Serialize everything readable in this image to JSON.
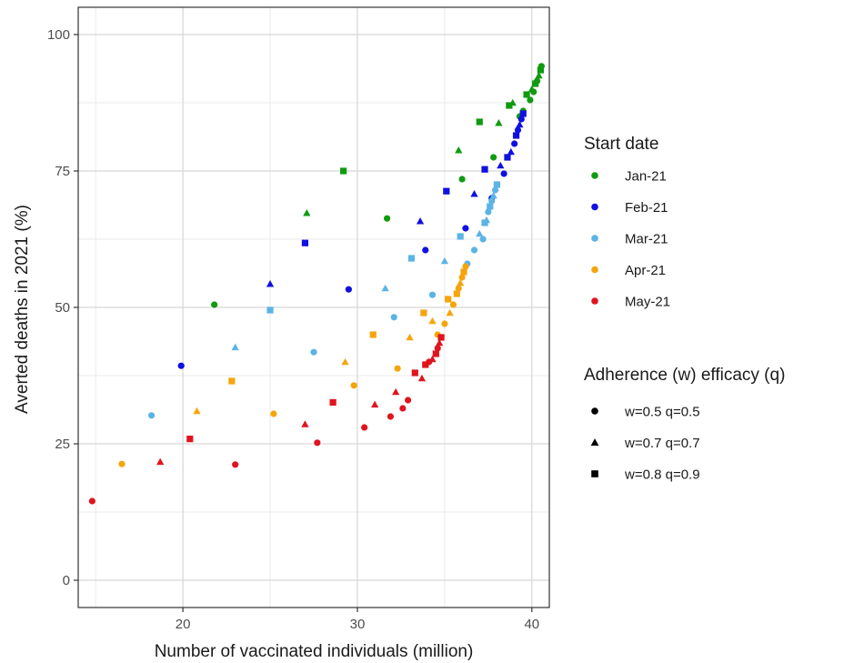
{
  "chart_data": {
    "type": "scatter",
    "xlabel": "Number of vaccinated individuals (million)",
    "ylabel": "Averted deaths in 2021 (%)",
    "xlim": [
      14,
      41
    ],
    "ylim": [
      -5,
      105
    ],
    "x_ticks": [
      20,
      30,
      40
    ],
    "y_ticks": [
      0,
      25,
      50,
      75,
      100
    ],
    "grid": true,
    "legend_placement": "right",
    "color_legend": {
      "title": "Start date",
      "entries": [
        {
          "label": "Jan-21",
          "color": "#109a10"
        },
        {
          "label": "Feb-21",
          "color": "#1010e0"
        },
        {
          "label": "Mar-21",
          "color": "#5bb4e5"
        },
        {
          "label": "Apr-21",
          "color": "#f5a50c"
        },
        {
          "label": "May-21",
          "color": "#e0141e"
        }
      ]
    },
    "shape_legend": {
      "title": "Adherence (w) efficacy (q)",
      "entries": [
        {
          "label": "w=0.5 q=0.5",
          "shape": "circle"
        },
        {
          "label": "w=0.7 q=0.7",
          "shape": "triangle"
        },
        {
          "label": "w=0.8 q=0.9",
          "shape": "square"
        }
      ]
    },
    "series": [
      {
        "name": "Jan-21",
        "points": [
          [
            21.8,
            50.5,
            "circle"
          ],
          [
            27.1,
            67.3,
            "triangle"
          ],
          [
            29.2,
            75,
            "square"
          ],
          [
            31.7,
            66.3,
            "circle"
          ],
          [
            35.8,
            78.8,
            "triangle"
          ],
          [
            36.0,
            73.5,
            "circle"
          ],
          [
            37.0,
            84,
            "square"
          ],
          [
            37.8,
            77.5,
            "circle"
          ],
          [
            38.1,
            83.8,
            "triangle"
          ],
          [
            38.7,
            87,
            "square"
          ],
          [
            38.9,
            87.5,
            "triangle"
          ],
          [
            39.3,
            85,
            "circle"
          ],
          [
            39.5,
            86,
            "circle"
          ],
          [
            39.7,
            89,
            "square"
          ],
          [
            39.9,
            88,
            "circle"
          ],
          [
            40.0,
            90,
            "triangle"
          ],
          [
            40.1,
            89.5,
            "circle"
          ],
          [
            40.2,
            91,
            "square"
          ],
          [
            40.3,
            91.5,
            "circle"
          ],
          [
            40.4,
            92.5,
            "triangle"
          ],
          [
            40.5,
            93.5,
            "square"
          ],
          [
            40.55,
            94.2,
            "circle"
          ]
        ]
      },
      {
        "name": "Feb-21",
        "points": [
          [
            19.9,
            39.3,
            "circle"
          ],
          [
            25.0,
            54.3,
            "triangle"
          ],
          [
            27.0,
            61.8,
            "square"
          ],
          [
            29.5,
            53.3,
            "circle"
          ],
          [
            33.6,
            65.8,
            "triangle"
          ],
          [
            33.9,
            60.5,
            "circle"
          ],
          [
            35.1,
            71.3,
            "square"
          ],
          [
            36.2,
            64.5,
            "circle"
          ],
          [
            36.7,
            70.8,
            "triangle"
          ],
          [
            37.3,
            75.3,
            "square"
          ],
          [
            37.7,
            70,
            "circle"
          ],
          [
            38.0,
            72.5,
            "circle"
          ],
          [
            38.2,
            76,
            "triangle"
          ],
          [
            38.4,
            74.5,
            "circle"
          ],
          [
            38.6,
            77.5,
            "square"
          ],
          [
            38.8,
            78.5,
            "triangle"
          ],
          [
            39.0,
            80,
            "circle"
          ],
          [
            39.1,
            81.5,
            "square"
          ],
          [
            39.2,
            82.5,
            "circle"
          ],
          [
            39.3,
            83.5,
            "triangle"
          ],
          [
            39.4,
            84.5,
            "circle"
          ],
          [
            39.5,
            85.5,
            "square"
          ]
        ]
      },
      {
        "name": "Mar-21",
        "points": [
          [
            18.2,
            30.2,
            "circle"
          ],
          [
            23.0,
            42.7,
            "triangle"
          ],
          [
            25.0,
            49.5,
            "square"
          ],
          [
            27.5,
            41.8,
            "circle"
          ],
          [
            31.6,
            53.5,
            "triangle"
          ],
          [
            32.1,
            48.2,
            "circle"
          ],
          [
            33.1,
            59,
            "square"
          ],
          [
            34.3,
            52.3,
            "circle"
          ],
          [
            35.0,
            58.5,
            "triangle"
          ],
          [
            35.9,
            63,
            "square"
          ],
          [
            36.3,
            58,
            "circle"
          ],
          [
            36.7,
            60.5,
            "circle"
          ],
          [
            37.0,
            63.5,
            "triangle"
          ],
          [
            37.2,
            62.5,
            "circle"
          ],
          [
            37.3,
            65.5,
            "square"
          ],
          [
            37.4,
            66,
            "triangle"
          ],
          [
            37.5,
            67.5,
            "circle"
          ],
          [
            37.6,
            68.5,
            "square"
          ],
          [
            37.7,
            69.5,
            "circle"
          ],
          [
            37.8,
            70.5,
            "triangle"
          ],
          [
            37.9,
            71.5,
            "circle"
          ],
          [
            38.0,
            72.5,
            "square"
          ]
        ]
      },
      {
        "name": "Apr-21",
        "points": [
          [
            16.5,
            21.3,
            "circle"
          ],
          [
            20.8,
            31,
            "triangle"
          ],
          [
            22.8,
            36.5,
            "square"
          ],
          [
            25.2,
            30.5,
            "circle"
          ],
          [
            29.3,
            40,
            "triangle"
          ],
          [
            29.8,
            35.7,
            "circle"
          ],
          [
            30.9,
            45,
            "square"
          ],
          [
            32.3,
            38.8,
            "circle"
          ],
          [
            33.0,
            44.5,
            "triangle"
          ],
          [
            33.8,
            49,
            "square"
          ],
          [
            34.3,
            47.5,
            "triangle"
          ],
          [
            34.6,
            45,
            "circle"
          ],
          [
            35.0,
            47,
            "circle"
          ],
          [
            35.2,
            51.5,
            "square"
          ],
          [
            35.3,
            49,
            "triangle"
          ],
          [
            35.5,
            50.5,
            "circle"
          ],
          [
            35.7,
            52.5,
            "square"
          ],
          [
            35.8,
            53.5,
            "circle"
          ],
          [
            35.9,
            54.5,
            "triangle"
          ],
          [
            36.0,
            55.5,
            "circle"
          ],
          [
            36.1,
            56.5,
            "square"
          ],
          [
            36.2,
            57.5,
            "circle"
          ]
        ]
      },
      {
        "name": "May-21",
        "points": [
          [
            14.8,
            14.5,
            "circle"
          ],
          [
            18.7,
            21.7,
            "triangle"
          ],
          [
            20.4,
            25.9,
            "square"
          ],
          [
            23.0,
            21.2,
            "circle"
          ],
          [
            27.0,
            28.6,
            "triangle"
          ],
          [
            27.7,
            25.2,
            "circle"
          ],
          [
            28.6,
            32.6,
            "square"
          ],
          [
            30.4,
            28,
            "circle"
          ],
          [
            31.0,
            32.2,
            "triangle"
          ],
          [
            31.9,
            30,
            "circle"
          ],
          [
            32.2,
            34.5,
            "triangle"
          ],
          [
            32.6,
            31.5,
            "circle"
          ],
          [
            32.9,
            33,
            "circle"
          ],
          [
            33.3,
            38,
            "square"
          ],
          [
            33.7,
            37,
            "triangle"
          ],
          [
            33.9,
            39.5,
            "square"
          ],
          [
            34.1,
            40,
            "circle"
          ],
          [
            34.3,
            40.5,
            "triangle"
          ],
          [
            34.5,
            41.5,
            "square"
          ],
          [
            34.6,
            42.5,
            "circle"
          ],
          [
            34.7,
            43.5,
            "triangle"
          ],
          [
            34.8,
            44.5,
            "square"
          ]
        ]
      }
    ]
  }
}
